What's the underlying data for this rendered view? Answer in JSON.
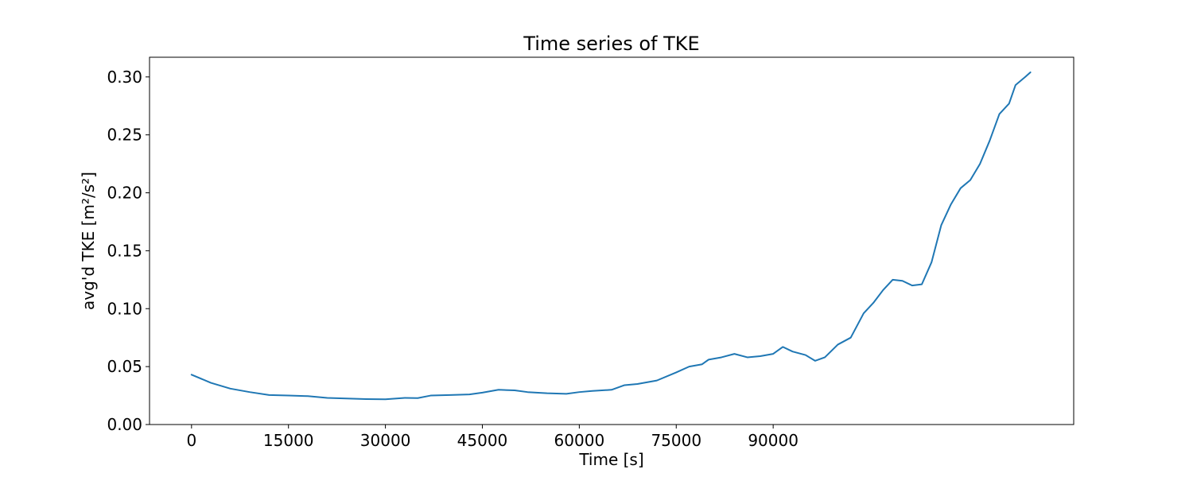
{
  "chart_data": {
    "type": "line",
    "title": "Time series of TKE",
    "xlabel": "Time [s]",
    "ylabel": "avg'd TKE [m²/s²]",
    "xlim": [
      -6500,
      136500
    ],
    "ylim": [
      0.0,
      0.317
    ],
    "xticks": [
      0,
      15000,
      30000,
      45000,
      60000,
      75000,
      90000
    ],
    "xtick_labels": [
      "0",
      "15000",
      "30000",
      "45000",
      "60000",
      "75000",
      "90000"
    ],
    "yticks": [
      0.0,
      0.05,
      0.1,
      0.15,
      0.2,
      0.25,
      0.3
    ],
    "ytick_labels": [
      "0.00",
      "0.05",
      "0.10",
      "0.15",
      "0.20",
      "0.25",
      "0.30"
    ],
    "grid": false,
    "legend": "none",
    "series": [
      {
        "color": "#1f77b4",
        "x": [
          0,
          3000,
          6000,
          9000,
          12000,
          15000,
          18000,
          21000,
          24000,
          27000,
          30000,
          33000,
          35000,
          37000,
          40000,
          43000,
          45000,
          47500,
          50000,
          52000,
          55000,
          58000,
          60000,
          62000,
          65000,
          67000,
          69000,
          72000,
          75000,
          77000,
          79000,
          80000,
          82000,
          84000,
          86000,
          88000,
          90000,
          91500,
          93000,
          95000,
          96500,
          98000,
          100000,
          102000,
          104000,
          105500,
          107000,
          108500,
          110000,
          111500,
          113000,
          114500,
          116000,
          117500,
          119000,
          120500,
          122000,
          123500,
          125000,
          126500,
          127500,
          129000,
          129800
        ],
        "y": [
          0.043,
          0.036,
          0.031,
          0.028,
          0.0255,
          0.025,
          0.0245,
          0.023,
          0.0225,
          0.022,
          0.0218,
          0.023,
          0.0228,
          0.025,
          0.0255,
          0.026,
          0.0275,
          0.03,
          0.0295,
          0.028,
          0.027,
          0.0265,
          0.028,
          0.029,
          0.03,
          0.034,
          0.035,
          0.038,
          0.045,
          0.05,
          0.052,
          0.056,
          0.058,
          0.061,
          0.058,
          0.059,
          0.061,
          0.067,
          0.063,
          0.06,
          0.055,
          0.058,
          0.069,
          0.075,
          0.096,
          0.105,
          0.116,
          0.125,
          0.124,
          0.12,
          0.121,
          0.14,
          0.172,
          0.19,
          0.204,
          0.211,
          0.225,
          0.245,
          0.268,
          0.277,
          0.293,
          0.3,
          0.304
        ]
      }
    ]
  }
}
